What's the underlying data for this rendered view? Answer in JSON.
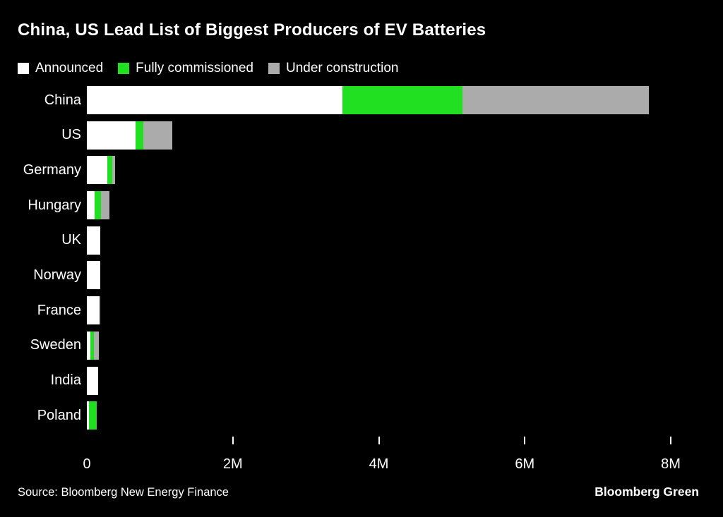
{
  "title": "China, US Lead List of Biggest Producers of EV Batteries",
  "colors": {
    "background": "#000000",
    "text": "#ffffff",
    "announced": "#ffffff",
    "fully_commissioned": "#21df21",
    "under_construction": "#ababab"
  },
  "legend": [
    {
      "label": "Announced",
      "color": "#ffffff"
    },
    {
      "label": "Fully commissioned",
      "color": "#21df21"
    },
    {
      "label": "Under construction",
      "color": "#ababab"
    }
  ],
  "chart_data": {
    "type": "bar",
    "orientation": "horizontal",
    "title": "China, US Lead List of Biggest Producers of EV Batteries",
    "categories": [
      "China",
      "US",
      "Germany",
      "Hungary",
      "UK",
      "Norway",
      "France",
      "Sweden",
      "India",
      "Poland"
    ],
    "series": [
      {
        "name": "Announced",
        "color": "#ffffff",
        "values": [
          3500000,
          670000,
          280000,
          110000,
          180000,
          180000,
          160000,
          50000,
          150000,
          30000
        ]
      },
      {
        "name": "Fully commissioned",
        "color": "#21df21",
        "values": [
          1650000,
          100000,
          70000,
          80000,
          0,
          0,
          0,
          50000,
          0,
          110000
        ]
      },
      {
        "name": "Under construction",
        "color": "#ababab",
        "values": [
          2550000,
          400000,
          40000,
          120000,
          0,
          0,
          20000,
          60000,
          0,
          0
        ]
      }
    ],
    "xlim": [
      0,
      8000000
    ],
    "x_ticks": [
      {
        "value": 0,
        "label": "0",
        "mark": false
      },
      {
        "value": 2000000,
        "label": "2M",
        "mark": true
      },
      {
        "value": 4000000,
        "label": "4M",
        "mark": true
      },
      {
        "value": 6000000,
        "label": "6M",
        "mark": true
      },
      {
        "value": 8000000,
        "label": "8M",
        "mark": true
      }
    ],
    "grid": false,
    "legend_position": "top"
  },
  "footer": {
    "source": "Source: Bloomberg New Energy Finance",
    "brand": "Bloomberg Green"
  }
}
